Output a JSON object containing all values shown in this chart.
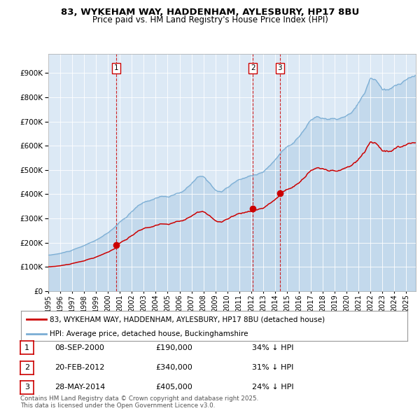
{
  "title": "83, WYKEHAM WAY, HADDENHAM, AYLESBURY, HP17 8BU",
  "subtitle": "Price paid vs. HM Land Registry's House Price Index (HPI)",
  "plot_bg_color": "#dce9f5",
  "red_line_label": "83, WYKEHAM WAY, HADDENHAM, AYLESBURY, HP17 8BU (detached house)",
  "blue_line_label": "HPI: Average price, detached house, Buckinghamshire",
  "transactions": [
    {
      "num": 1,
      "date": "08-SEP-2000",
      "date_decimal": 2000.69,
      "price": 190000,
      "pct": "34% ↓ HPI"
    },
    {
      "num": 2,
      "date": "20-FEB-2012",
      "date_decimal": 2012.14,
      "price": 340000,
      "pct": "31% ↓ HPI"
    },
    {
      "num": 3,
      "date": "28-MAY-2014",
      "date_decimal": 2014.41,
      "price": 405000,
      "pct": "24% ↓ HPI"
    }
  ],
  "footnote1": "Contains HM Land Registry data © Crown copyright and database right 2025.",
  "footnote2": "This data is licensed under the Open Government Licence v3.0.",
  "ylim": [
    0,
    980000
  ],
  "yticks": [
    0,
    100000,
    200000,
    300000,
    400000,
    500000,
    600000,
    700000,
    800000,
    900000
  ],
  "xlim_start": 1995.0,
  "xlim_end": 2025.8,
  "red_color": "#cc0000",
  "blue_color": "#7aadd4",
  "dashed_color": "#cc0000",
  "grid_color": "#c8d8e8",
  "white_grid": "#ffffff"
}
